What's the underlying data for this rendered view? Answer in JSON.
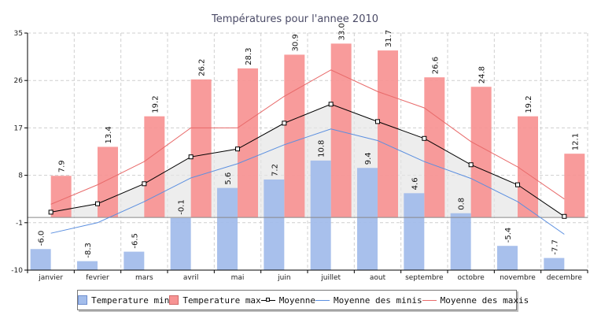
{
  "chart_data": {
    "type": "bar",
    "title": "Températures pour l'annee 2010",
    "categories": [
      "janvier",
      "fevrier",
      "mars",
      "avril",
      "mai",
      "juin",
      "juillet",
      "aout",
      "septembre",
      "octobre",
      "novembre",
      "decembre"
    ],
    "ylim": [
      -10,
      35
    ],
    "yticks": [
      -10,
      -1,
      8,
      17,
      26,
      35
    ],
    "grid": true,
    "legend_position": "bottom",
    "series": [
      {
        "name": "Temperature min",
        "kind": "bar",
        "color": "#a3bdeb",
        "values": [
          -6.0,
          -8.3,
          -6.5,
          -0.1,
          5.6,
          7.2,
          10.8,
          9.4,
          4.6,
          0.8,
          -5.4,
          -7.7
        ],
        "labels": [
          "-6.0",
          "-8.3",
          "-6.5",
          "-0.1",
          "5.6",
          "7.2",
          "10.8",
          "9.4",
          "4.6",
          "0.8",
          "-5.4",
          "-7.7"
        ]
      },
      {
        "name": "Temperature max",
        "kind": "bar",
        "color": "#f79393",
        "values": [
          7.9,
          13.4,
          19.2,
          26.2,
          28.3,
          30.9,
          33.0,
          31.7,
          26.6,
          24.8,
          19.2,
          12.1
        ],
        "labels": [
          "7.9",
          "13.4",
          "19.2",
          "26.2",
          "28.3",
          "30.9",
          "33.0",
          "31.7",
          "26.6",
          "24.8",
          "19.2",
          "12.1"
        ]
      },
      {
        "name": "Moyenne",
        "kind": "line",
        "color": "#000000",
        "values": [
          1.0,
          2.6,
          6.4,
          11.5,
          13.0,
          17.9,
          21.5,
          18.2,
          15.0,
          10.0,
          6.2,
          0.2
        ]
      },
      {
        "name": "Moyenne des minis",
        "kind": "line",
        "color": "#5b8fe0",
        "values": [
          -3.0,
          -1.0,
          3.0,
          7.5,
          10.2,
          13.8,
          16.8,
          14.6,
          10.6,
          7.4,
          3.0,
          -3.2
        ]
      },
      {
        "name": "Moyenne des maxis",
        "kind": "line",
        "color": "#e86a6a",
        "values": [
          2.5,
          6.2,
          10.6,
          17.0,
          17.0,
          23.0,
          28.0,
          23.9,
          20.8,
          14.4,
          9.6,
          3.5
        ]
      }
    ]
  }
}
